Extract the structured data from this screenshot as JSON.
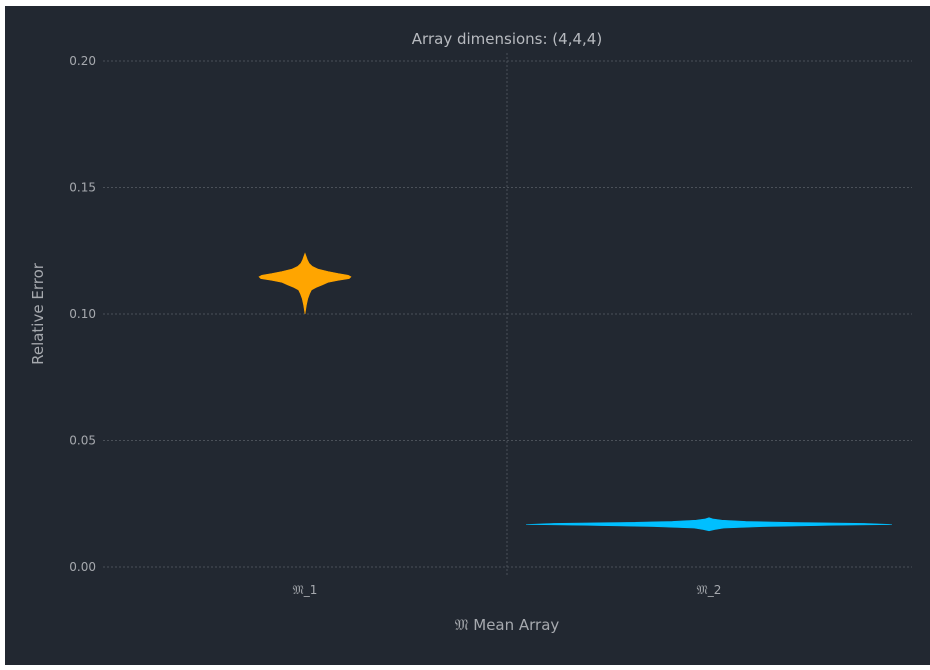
{
  "chart_data": {
    "type": "violin",
    "title": "Array dimensions: (4,4,4)",
    "xlabel": "𝔐 Mean Array",
    "ylabel": "Relative Error",
    "categories": [
      "𝔐_1",
      "𝔐_2"
    ],
    "ylim": [
      0.0,
      0.2
    ],
    "yticks": [
      0.0,
      0.05,
      0.1,
      0.15,
      0.2
    ],
    "ytick_labels": [
      "0.00",
      "0.05",
      "0.10",
      "0.15",
      "0.20"
    ],
    "grid": true,
    "series": [
      {
        "category": "𝔐_1",
        "color": "#ffa500",
        "min": 0.1,
        "max": 0.124,
        "density_profile": [
          {
            "y": 0.1,
            "density": 0.0
          },
          {
            "y": 0.1035,
            "density": 0.03
          },
          {
            "y": 0.106,
            "density": 0.06
          },
          {
            "y": 0.108,
            "density": 0.1
          },
          {
            "y": 0.1095,
            "density": 0.14
          },
          {
            "y": 0.1105,
            "density": 0.24
          },
          {
            "y": 0.1115,
            "density": 0.38
          },
          {
            "y": 0.1125,
            "density": 0.5
          },
          {
            "y": 0.1133,
            "density": 0.72
          },
          {
            "y": 0.114,
            "density": 0.96
          },
          {
            "y": 0.1147,
            "density": 1.0
          },
          {
            "y": 0.1153,
            "density": 0.94
          },
          {
            "y": 0.116,
            "density": 0.72
          },
          {
            "y": 0.1168,
            "density": 0.5
          },
          {
            "y": 0.1177,
            "density": 0.29
          },
          {
            "y": 0.1188,
            "density": 0.16
          },
          {
            "y": 0.12,
            "density": 0.09
          },
          {
            "y": 0.1215,
            "density": 0.05
          },
          {
            "y": 0.1228,
            "density": 0.025
          },
          {
            "y": 0.124,
            "density": 0.0
          }
        ]
      },
      {
        "category": "𝔐_2",
        "color": "#00bfff",
        "min": 0.0143,
        "max": 0.0195,
        "density_profile": [
          {
            "y": 0.0143,
            "density": 0.0
          },
          {
            "y": 0.0148,
            "density": 0.03
          },
          {
            "y": 0.0154,
            "density": 0.08
          },
          {
            "y": 0.016,
            "density": 0.3
          },
          {
            "y": 0.0165,
            "density": 0.7
          },
          {
            "y": 0.0168,
            "density": 1.0
          },
          {
            "y": 0.0172,
            "density": 0.85
          },
          {
            "y": 0.0176,
            "density": 0.45
          },
          {
            "y": 0.018,
            "density": 0.2
          },
          {
            "y": 0.0185,
            "density": 0.07
          },
          {
            "y": 0.019,
            "density": 0.02
          },
          {
            "y": 0.0195,
            "density": 0.0
          }
        ]
      }
    ]
  },
  "colors": {
    "background": "#ffffff",
    "plot_background": "#222831",
    "grid": "#4b5159",
    "text": "#a6a9ae"
  }
}
